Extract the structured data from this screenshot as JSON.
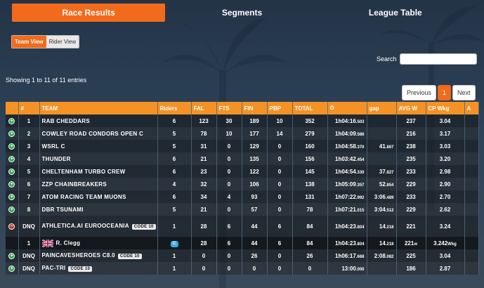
{
  "tabs": [
    {
      "label": "Race Results",
      "active": true
    },
    {
      "label": "Segments",
      "active": false
    },
    {
      "label": "League Table",
      "active": false
    }
  ],
  "view_toggle": {
    "team": "Team View",
    "rider": "Rider View"
  },
  "search": {
    "label": "Search",
    "value": ""
  },
  "info": "Showing 1 to 11 of 11 entries",
  "pager": {
    "previous": "Previous",
    "current": "1",
    "next": "Next"
  },
  "columns": [
    "",
    "#",
    "TEAM",
    "Riders",
    "FAL",
    "FTS",
    "FIN",
    "PBP",
    "TOTAL",
    "⏱",
    "gap",
    "AVG W",
    "CP Wkg",
    "A"
  ],
  "rows": [
    {
      "icon": "green",
      "pos": "1",
      "team": "RAB CHEDDARS",
      "badge": "",
      "riders": "6",
      "fal": "123",
      "fts": "30",
      "fin": "189",
      "pbp": "10",
      "total": "352",
      "time": "1h04:16",
      "time_ms": ".503",
      "gap": "",
      "gap_ms": "",
      "avgw": "237",
      "cp": "3.04"
    },
    {
      "icon": "green",
      "pos": "2",
      "team": "COWLEY ROAD CONDORS OPEN C",
      "badge": "",
      "riders": "5",
      "fal": "78",
      "fts": "10",
      "fin": "177",
      "pbp": "14",
      "total": "279",
      "time": "1h04:09",
      "time_ms": ".586",
      "gap": "",
      "gap_ms": "",
      "avgw": "216",
      "cp": "3.17"
    },
    {
      "icon": "green",
      "pos": "3",
      "team": "WSRL C",
      "badge": "",
      "riders": "5",
      "fal": "31",
      "fts": "0",
      "fin": "129",
      "pbp": "0",
      "total": "160",
      "time": "1h04:58",
      "time_ms": ".370",
      "gap": "41",
      "gap_ms": ".867",
      "avgw": "238",
      "cp": "3.03"
    },
    {
      "icon": "green",
      "pos": "4",
      "team": "THUNDER",
      "badge": "",
      "riders": "6",
      "fal": "21",
      "fts": "0",
      "fin": "135",
      "pbp": "0",
      "total": "156",
      "time": "1h03:42",
      "time_ms": ".454",
      "gap": "",
      "gap_ms": "",
      "avgw": "235",
      "cp": "3.20"
    },
    {
      "icon": "green",
      "pos": "5",
      "team": "CHELTENHAM TURBO CREW",
      "badge": "",
      "riders": "6",
      "fal": "23",
      "fts": "0",
      "fin": "122",
      "pbp": "0",
      "total": "145",
      "time": "1h04:54",
      "time_ms": ".330",
      "gap": "37",
      "gap_ms": ".827",
      "avgw": "233",
      "cp": "2.98"
    },
    {
      "icon": "green",
      "pos": "6",
      "team": "ZZP CHAINBREAKERS",
      "badge": "",
      "riders": "4",
      "fal": "32",
      "fts": "0",
      "fin": "106",
      "pbp": "0",
      "total": "138",
      "time": "1h05:09",
      "time_ms": ".357",
      "gap": "52",
      "gap_ms": ".854",
      "avgw": "229",
      "cp": "2.90"
    },
    {
      "icon": "green",
      "pos": "7",
      "team": "ATOM RACING TEAM MUONS",
      "badge": "",
      "riders": "6",
      "fal": "34",
      "fts": "4",
      "fin": "93",
      "pbp": "0",
      "total": "131",
      "time": "1h07:22",
      "time_ms": ".992",
      "gap": "3:06",
      "gap_ms": ".489",
      "avgw": "233",
      "cp": "2.70"
    },
    {
      "icon": "green",
      "pos": "8",
      "team": "DBR TSUNAMI",
      "badge": "",
      "riders": "5",
      "fal": "21",
      "fts": "0",
      "fin": "57",
      "pbp": "0",
      "total": "78",
      "time": "1h07:21",
      "time_ms": ".015",
      "gap": "3:04",
      "gap_ms": ".512",
      "avgw": "229",
      "cp": "2.62"
    },
    {
      "icon": "red",
      "pos": "DNQ",
      "team": "ATHLETICA.AI EUROOCEANIA",
      "badge": "CODE 10",
      "riders": "1",
      "fal": "28",
      "fts": "6",
      "fin": "44",
      "pbp": "6",
      "total": "84",
      "time": "1h04:23",
      "time_ms": ".804",
      "gap": "14",
      "gap_ms": ".218",
      "avgw": "221",
      "cp": "3.24",
      "tall": true
    }
  ],
  "rider_row": {
    "pos": "1",
    "name": "R. Clegg",
    "cat": "C",
    "fal": "28",
    "fts": "6",
    "fin": "44",
    "pbp": "6",
    "total": "84",
    "time": "1h04:23",
    "time_ms": ".804",
    "gap": "14",
    "gap_ms": ".218",
    "avgw": "221",
    "avgw_unit": "w",
    "cp": "3.242",
    "cp_unit": "Wkg"
  },
  "rows_after": [
    {
      "icon": "green",
      "pos": "DNQ",
      "team": "PAINCAVESHEROES C8.0",
      "badge": "CODE 10",
      "riders": "1",
      "fal": "0",
      "fts": "0",
      "fin": "26",
      "pbp": "0",
      "total": "26",
      "time": "1h06:17",
      "time_ms": ".668",
      "gap": "2:08",
      "gap_ms": ".082",
      "avgw": "225",
      "cp": "3.04"
    },
    {
      "icon": "green",
      "pos": "DNQ",
      "team": "PAC-TRI",
      "badge": "CODE 10",
      "riders": "1",
      "fal": "0",
      "fts": "0",
      "fin": "0",
      "pbp": "0",
      "total": "0",
      "time": "13:00",
      "time_ms": ".000",
      "gap": "",
      "gap_ms": "",
      "avgw": "186",
      "cp": "2.87"
    }
  ]
}
